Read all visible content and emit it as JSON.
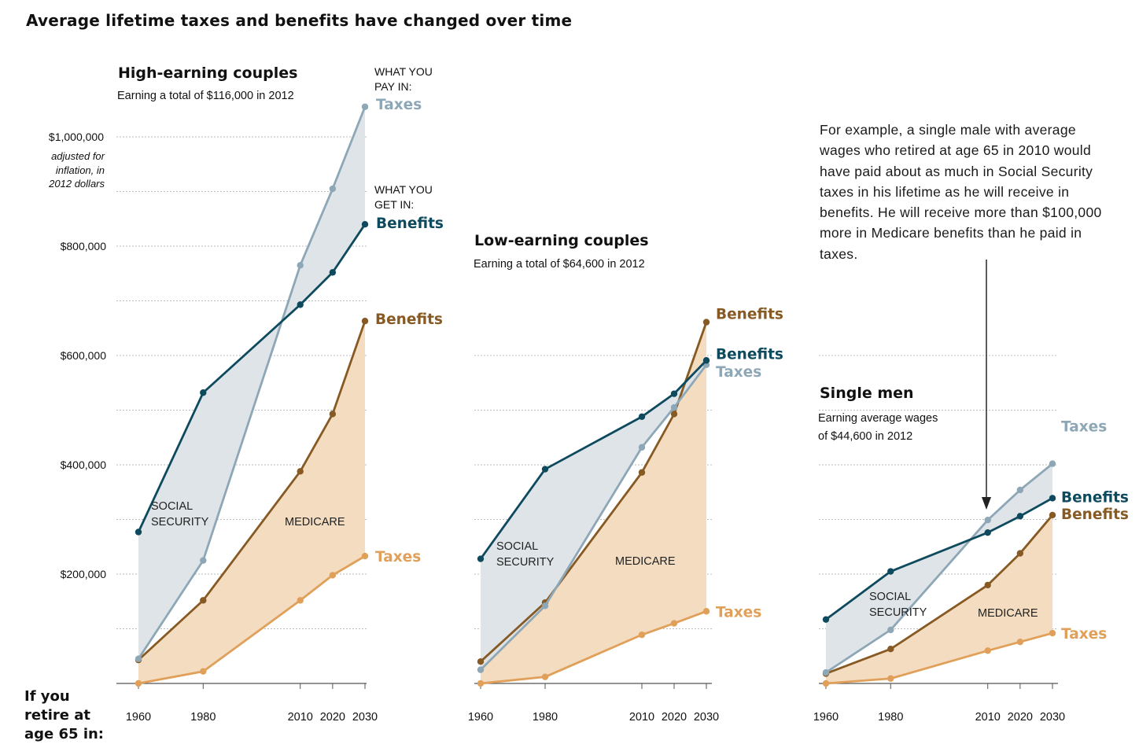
{
  "title": "Average lifetime taxes and benefits have changed over time",
  "x_axis_label": "If you retire at age 65 in:",
  "y_axis": {
    "ticks": [
      200000,
      400000,
      600000,
      800000,
      1000000
    ],
    "tick_labels": [
      "$200,000",
      "$400,000",
      "$600,000",
      "$800,000",
      "$1,000,000"
    ],
    "unit_note": [
      "adjusted for",
      "inflation, in",
      "2012 dollars"
    ],
    "ylim": [
      0,
      1000000
    ]
  },
  "header_pay": [
    "WHAT YOU",
    "PAY IN:"
  ],
  "header_get": [
    "WHAT YOU",
    "GET IN:"
  ],
  "annotation": "For example, a single male with average wages who retired at age 65 in 2010 would have paid about as much in Social Security taxes in his lifetime as he will receive in benefits. He will receive more than $100,000 more in Medicare benefits than he paid in taxes.",
  "colors": {
    "ss_taxes": "#8ea7b6",
    "ss_benefits": "#0e4a5e",
    "med_benefits": "#875a24",
    "med_taxes": "#e0a05a",
    "ss_fill": "#dde3e7",
    "med_fill": "#f3dcc0"
  },
  "chart_data": [
    {
      "type": "line",
      "title": "High-earning couples",
      "subtitle": "Earning a total of $116,000 in 2012",
      "x": [
        1960,
        1980,
        2010,
        2020,
        2030
      ],
      "x_tick_labels": [
        "1960",
        "1980",
        "2010",
        "2020",
        "2030"
      ],
      "ylim": [
        0,
        1000000
      ],
      "region_labels": {
        "social_security": [
          "SOCIAL",
          "SECURITY"
        ],
        "medicare": "MEDICARE"
      },
      "series": [
        {
          "name": "Taxes",
          "program": "Social Security",
          "values": [
            45000,
            225000,
            765000,
            905000,
            1055000
          ]
        },
        {
          "name": "Benefits",
          "program": "Social Security",
          "values": [
            277000,
            532000,
            693000,
            752000,
            840000
          ]
        },
        {
          "name": "Benefits",
          "program": "Medicare",
          "values": [
            43000,
            152000,
            388000,
            493000,
            663000
          ]
        },
        {
          "name": "Taxes",
          "program": "Medicare",
          "values": [
            0,
            22000,
            152000,
            198000,
            233000
          ]
        }
      ]
    },
    {
      "type": "line",
      "title": "Low-earning couples",
      "subtitle": "Earning a total of $64,600 in 2012",
      "x": [
        1960,
        1980,
        2010,
        2020,
        2030
      ],
      "x_tick_labels": [
        "1960",
        "1980",
        "2010",
        "2020",
        "2030"
      ],
      "ylim": [
        0,
        1000000
      ],
      "region_labels": {
        "social_security": [
          "SOCIAL",
          "SECURITY"
        ],
        "medicare": "MEDICARE"
      },
      "series": [
        {
          "name": "Taxes",
          "program": "Social Security",
          "values": [
            25000,
            142000,
            432000,
            505000,
            583000
          ]
        },
        {
          "name": "Benefits",
          "program": "Social Security",
          "values": [
            228000,
            392000,
            488000,
            530000,
            591000
          ]
        },
        {
          "name": "Benefits",
          "program": "Medicare",
          "values": [
            40000,
            148000,
            386000,
            493000,
            661000
          ]
        },
        {
          "name": "Taxes",
          "program": "Medicare",
          "values": [
            0,
            12000,
            89000,
            110000,
            132000
          ]
        }
      ]
    },
    {
      "type": "line",
      "title": "Single men",
      "subtitle": [
        "Earning average wages",
        "of $44,600 in 2012"
      ],
      "x": [
        1960,
        1980,
        2010,
        2020,
        2030
      ],
      "x_tick_labels": [
        "1960",
        "1980",
        "2010",
        "2020",
        "2030"
      ],
      "ylim": [
        0,
        1000000
      ],
      "region_labels": {
        "social_security": [
          "SOCIAL",
          "SECURITY"
        ],
        "medicare": "MEDICARE"
      },
      "series": [
        {
          "name": "Taxes",
          "program": "Social Security",
          "values": [
            20000,
            98000,
            299000,
            354000,
            402000
          ]
        },
        {
          "name": "Benefits",
          "program": "Social Security",
          "values": [
            117000,
            205000,
            276000,
            306000,
            339000
          ]
        },
        {
          "name": "Benefits",
          "program": "Medicare",
          "values": [
            18000,
            63000,
            180000,
            238000,
            308000
          ]
        },
        {
          "name": "Taxes",
          "program": "Medicare",
          "values": [
            0,
            9000,
            60000,
            76000,
            92000
          ]
        }
      ]
    }
  ]
}
